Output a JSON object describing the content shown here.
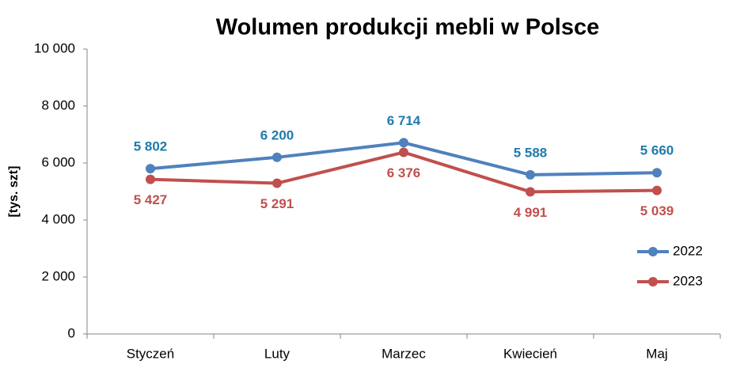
{
  "chart_data": {
    "type": "line",
    "title": "Wolumen produkcji mebli w Polsce",
    "y_label": "[tys. szt]",
    "categories": [
      "Styczeń",
      "Luty",
      "Marzec",
      "Kwiecień",
      "Maj"
    ],
    "series": [
      {
        "name": "2022",
        "color": "#4f81bd",
        "label_color": "#1f7bab",
        "label_position": "above",
        "values": [
          5802,
          6200,
          6714,
          5588,
          5660
        ],
        "value_labels": [
          "5 802",
          "6 200",
          "6 714",
          "5 588",
          "5 660"
        ]
      },
      {
        "name": "2023",
        "color": "#c0504d",
        "label_color": "#c0504d",
        "label_position": "below",
        "values": [
          5427,
          5291,
          6376,
          4991,
          5039
        ],
        "value_labels": [
          "5 427",
          "5 291",
          "6 376",
          "4 991",
          "5 039"
        ]
      }
    ],
    "ylim": [
      0,
      10000
    ],
    "yticks": [
      0,
      {
        "value": 2000,
        "label": "2 000"
      },
      {
        "value": 4000,
        "label": "4 000"
      },
      {
        "value": 6000,
        "label": "6 000"
      },
      {
        "value": 8000,
        "label": "8 000"
      },
      {
        "value": 10000,
        "label": "10 000"
      }
    ],
    "legend": "right"
  }
}
